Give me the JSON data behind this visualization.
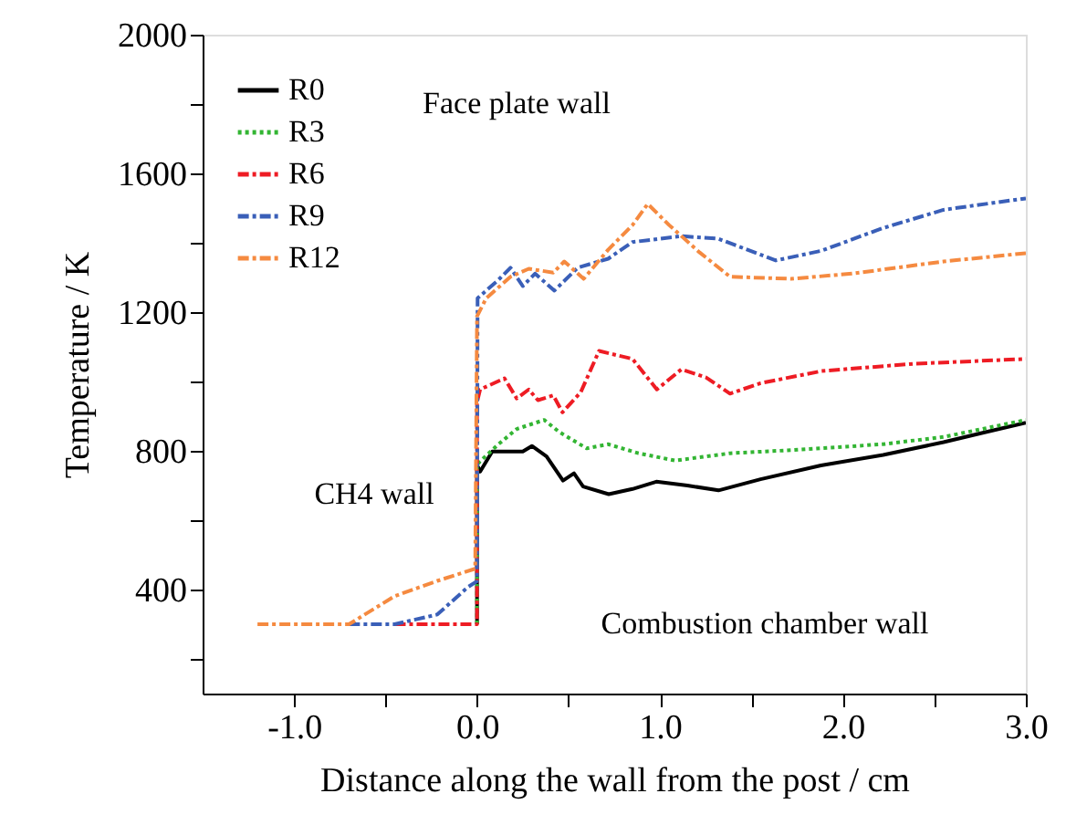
{
  "chart_data": {
    "type": "line",
    "xlabel": "Distance along the wall from the post / cm",
    "ylabel": "Temperature / K",
    "xlim": [
      -1.5,
      3.0
    ],
    "ylim": [
      100,
      2000
    ],
    "xticks": [
      {
        "value": -1,
        "label": "-1.0"
      },
      {
        "value": -0.5,
        "label": null
      },
      {
        "value": 0,
        "label": "0.0"
      },
      {
        "value": 0.5,
        "label": null
      },
      {
        "value": 1,
        "label": "1.0"
      },
      {
        "value": 1.5,
        "label": null
      },
      {
        "value": 2,
        "label": "2.0"
      },
      {
        "value": 2.5,
        "label": null
      },
      {
        "value": 3,
        "label": "3.0"
      }
    ],
    "yticks": [
      {
        "value": 200,
        "label": null
      },
      400,
      {
        "value": 600,
        "label": null
      },
      800,
      {
        "value": 1000,
        "label": null
      },
      1200,
      {
        "value": 1400,
        "label": null
      },
      1600,
      {
        "value": 1800,
        "label": null
      },
      2000
    ],
    "grid": false,
    "legend": "top left",
    "marker": "none",
    "series": [
      {
        "name": "R0",
        "color": "#000000",
        "line_style": "solid",
        "x": [
          0,
          0,
          0.017,
          0.083,
          0.25,
          0.3,
          0.38,
          0.47,
          0.53,
          0.58,
          0.72,
          0.85,
          0.98,
          1.15,
          1.32,
          1.55,
          1.88,
          2.22,
          2.55,
          2.78,
          3.0
        ],
        "values": [
          300,
          760,
          740,
          798,
          798,
          814,
          784,
          714,
          735,
          697,
          675,
          690,
          711,
          700,
          686,
          718,
          758,
          788,
          825,
          854,
          881
        ]
      },
      {
        "name": "R3",
        "color": "#33b533",
        "line_style": "dotted",
        "x": [
          0,
          0,
          0.017,
          0.117,
          0.217,
          0.367,
          0.45,
          0.6,
          0.717,
          0.883,
          1.083,
          1.383,
          1.717,
          2.217,
          2.55,
          3.0
        ],
        "values": [
          300,
          760,
          770,
          819,
          863,
          889,
          854,
          807,
          819,
          793,
          772,
          793,
          802,
          819,
          840,
          889
        ]
      },
      {
        "name": "R6",
        "color": "#ee1c24",
        "line_style": "dashed",
        "x": [
          -0.45,
          0,
          0,
          0.017,
          0.15,
          0.217,
          0.283,
          0.333,
          0.417,
          0.467,
          0.567,
          0.667,
          0.85,
          0.983,
          1.117,
          1.25,
          1.383,
          1.55,
          1.883,
          2.383,
          3.0
        ],
        "values": [
          300,
          300,
          940,
          977,
          1009,
          951,
          977,
          946,
          960,
          911,
          969,
          1088,
          1065,
          977,
          1035,
          1012,
          965,
          995,
          1030,
          1051,
          1065
        ]
      },
      {
        "name": "R9",
        "color": "#3a5fb8",
        "line_style": "dashed",
        "x": [
          -0.7,
          -0.45,
          -0.217,
          -0.05,
          0,
          0.003,
          0.117,
          0.183,
          0.25,
          0.317,
          0.423,
          0.55,
          0.717,
          0.85,
          1.117,
          1.317,
          1.633,
          1.883,
          2.217,
          2.55,
          3.0
        ],
        "values": [
          300,
          300,
          328,
          407,
          424,
          1240,
          1293,
          1328,
          1275,
          1311,
          1262,
          1328,
          1354,
          1402,
          1419,
          1412,
          1349,
          1377,
          1442,
          1495,
          1528
        ]
      },
      {
        "name": "R12",
        "color": "#f58a40",
        "line_style": "dashed",
        "x": [
          -1.2,
          -0.7,
          -0.45,
          -0.217,
          -0.01,
          0,
          0.05,
          0.183,
          0.283,
          0.417,
          0.477,
          0.583,
          0.717,
          0.85,
          0.933,
          1.05,
          1.217,
          1.383,
          1.717,
          2.05,
          2.55,
          3.0
        ],
        "values": [
          300,
          300,
          381,
          425,
          460,
          1188,
          1240,
          1302,
          1325,
          1314,
          1346,
          1296,
          1380,
          1451,
          1512,
          1451,
          1372,
          1302,
          1296,
          1311,
          1346,
          1370
        ]
      }
    ],
    "annotations": [
      "Face plate wall",
      "CH4 wall",
      "Combustion chamber wall"
    ]
  }
}
